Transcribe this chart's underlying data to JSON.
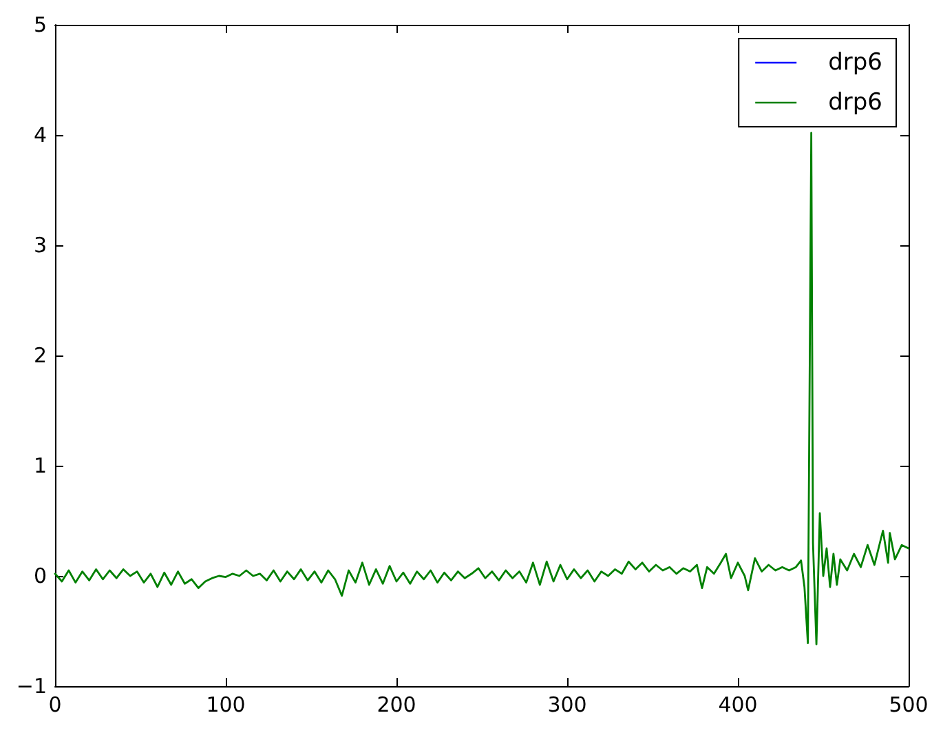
{
  "chart_data": {
    "type": "line",
    "x": [
      0,
      4,
      8,
      12,
      16,
      20,
      24,
      28,
      32,
      36,
      40,
      44,
      48,
      52,
      56,
      60,
      64,
      68,
      72,
      76,
      80,
      84,
      88,
      92,
      96,
      100,
      104,
      108,
      112,
      116,
      120,
      124,
      128,
      132,
      136,
      140,
      144,
      148,
      152,
      156,
      160,
      164,
      168,
      172,
      176,
      180,
      184,
      188,
      192,
      196,
      200,
      204,
      208,
      212,
      216,
      220,
      224,
      228,
      232,
      236,
      240,
      244,
      248,
      252,
      256,
      260,
      264,
      268,
      272,
      276,
      280,
      284,
      288,
      292,
      296,
      300,
      304,
      308,
      312,
      316,
      320,
      324,
      328,
      332,
      336,
      340,
      344,
      348,
      352,
      356,
      360,
      364,
      368,
      372,
      376,
      379,
      382,
      386,
      390,
      393,
      396,
      400,
      404,
      406,
      410,
      414,
      418,
      422,
      426,
      430,
      434,
      437,
      439,
      441,
      443,
      444,
      446,
      448,
      450,
      452,
      454,
      456,
      458,
      460,
      464,
      468,
      472,
      476,
      480,
      484,
      485,
      488,
      489,
      492,
      496,
      500
    ],
    "series": [
      {
        "name": "drp6",
        "color": "#0000ff",
        "values": [
          null,
          null,
          null,
          null,
          null,
          null,
          null,
          null,
          null,
          null,
          null,
          null,
          null,
          null,
          null,
          null,
          null,
          null,
          null,
          null,
          null,
          null,
          null,
          null,
          null,
          null,
          null,
          null,
          null,
          null,
          null,
          null,
          null,
          null,
          null,
          null,
          null,
          null,
          null,
          null,
          null,
          null,
          null,
          null,
          null,
          null,
          null,
          null,
          null,
          null,
          null,
          null,
          null,
          null,
          null,
          null,
          null,
          null,
          null,
          null,
          null,
          null,
          null,
          null,
          null,
          null,
          null,
          null,
          null,
          null,
          null,
          null,
          null,
          null,
          null,
          null,
          null,
          null,
          null,
          null,
          null,
          null,
          null,
          null,
          null,
          null,
          null,
          null,
          null,
          null,
          null,
          null,
          null,
          null,
          null,
          null,
          null,
          null,
          null,
          null,
          null,
          null,
          null,
          null,
          null,
          null,
          null,
          null,
          null,
          null,
          null,
          null,
          null,
          null,
          null,
          null,
          null,
          null,
          null,
          null,
          null,
          null,
          null,
          null,
          null,
          null,
          null,
          null,
          null,
          null,
          null,
          null,
          null,
          null,
          null,
          null
        ]
      },
      {
        "name": "drp6",
        "color": "#008000",
        "values": [
          0.02,
          -0.05,
          0.05,
          -0.06,
          0.04,
          -0.04,
          0.06,
          -0.03,
          0.05,
          -0.02,
          0.06,
          0.0,
          0.04,
          -0.06,
          0.02,
          -0.1,
          0.03,
          -0.08,
          0.04,
          -0.07,
          -0.03,
          -0.11,
          -0.05,
          -0.02,
          0.0,
          -0.01,
          0.02,
          0.0,
          0.05,
          0.0,
          0.02,
          -0.04,
          0.05,
          -0.05,
          0.04,
          -0.03,
          0.06,
          -0.04,
          0.04,
          -0.06,
          0.05,
          -0.03,
          -0.18,
          0.05,
          -0.06,
          0.12,
          -0.08,
          0.06,
          -0.07,
          0.09,
          -0.05,
          0.03,
          -0.07,
          0.04,
          -0.03,
          0.05,
          -0.06,
          0.03,
          -0.04,
          0.04,
          -0.02,
          0.02,
          0.07,
          -0.02,
          0.04,
          -0.04,
          0.05,
          -0.02,
          0.04,
          -0.06,
          0.12,
          -0.08,
          0.13,
          -0.05,
          0.1,
          -0.03,
          0.06,
          -0.02,
          0.05,
          -0.05,
          0.04,
          0.0,
          0.06,
          0.02,
          0.13,
          0.06,
          0.12,
          0.04,
          0.1,
          0.05,
          0.08,
          0.02,
          0.07,
          0.04,
          0.1,
          -0.11,
          0.08,
          0.02,
          0.12,
          0.2,
          -0.02,
          0.12,
          0.0,
          -0.13,
          0.16,
          0.04,
          0.1,
          0.05,
          0.08,
          0.05,
          0.08,
          0.14,
          -0.1,
          -0.61,
          4.02,
          0.3,
          -0.62,
          0.57,
          0.0,
          0.25,
          -0.1,
          0.2,
          -0.08,
          0.15,
          0.05,
          0.2,
          0.08,
          0.28,
          0.1,
          0.35,
          0.41,
          0.12,
          0.39,
          0.15,
          0.28,
          0.25
        ]
      }
    ],
    "xlim": [
      0,
      500
    ],
    "ylim": [
      -1,
      5
    ],
    "xticks": [
      0,
      100,
      200,
      300,
      400,
      500
    ],
    "yticks": [
      {
        "value": -1,
        "label": "−1"
      },
      0,
      1,
      2,
      3,
      4,
      5
    ],
    "legend": "top right",
    "marker": "none"
  }
}
